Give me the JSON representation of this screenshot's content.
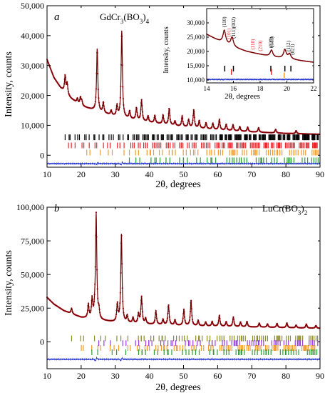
{
  "colors": {
    "observed": "#c0182a",
    "calculated": "#6e0000",
    "difference": "#1f2fd0",
    "axis": "#000000",
    "ticks_black": "#000000",
    "ticks_red": "#e8262b",
    "ticks_orange": "#f39a2b",
    "ticks_green": "#2e9a3a",
    "ticks_olive": "#8a8a2a",
    "ticks_purple": "#9a3ee0"
  },
  "chart_data": [
    {
      "type": "line",
      "panel_letter": "a",
      "compound": {
        "base": "GdCr",
        "s1": "3",
        "mid": "(BO",
        "s2": "3",
        "tail": ")",
        "s3": "4"
      },
      "xlabel": "2θ, degrees",
      "ylabel": "Intensity, counts",
      "xlim": [
        10,
        90
      ],
      "ylim": [
        -4000,
        50000
      ],
      "x_ticks": [
        "10",
        "20",
        "30",
        "40",
        "50",
        "60",
        "70",
        "80",
        "90"
      ],
      "x_tick_values": [
        10,
        20,
        30,
        40,
        50,
        60,
        70,
        80,
        90
      ],
      "y_ticks": [
        "0",
        "10,000",
        "20,000",
        "30,000",
        "40,000",
        "50,000"
      ],
      "y_tick_values": [
        0,
        10000,
        20000,
        30000,
        40000,
        50000
      ],
      "background": [
        [
          10,
          32000
        ],
        [
          12,
          26000
        ],
        [
          14,
          22500
        ],
        [
          17,
          19000
        ],
        [
          20,
          16500
        ],
        [
          25,
          14500
        ],
        [
          30,
          13000
        ],
        [
          35,
          12000
        ],
        [
          40,
          11000
        ],
        [
          50,
          9500
        ],
        [
          60,
          8500
        ],
        [
          70,
          7800
        ],
        [
          80,
          7300
        ],
        [
          90,
          7000
        ]
      ],
      "peaks": [
        {
          "x": 15.3,
          "h": 5500
        },
        {
          "x": 15.9,
          "h": 3500
        },
        {
          "x": 18.9,
          "h": 1500
        },
        {
          "x": 19.8,
          "h": 2500
        },
        {
          "x": 20.2,
          "h": 1500
        },
        {
          "x": 24.7,
          "h": 21000
        },
        {
          "x": 26.5,
          "h": 3500
        },
        {
          "x": 28.8,
          "h": 1500
        },
        {
          "x": 30.5,
          "h": 3500
        },
        {
          "x": 31.9,
          "h": 29000
        },
        {
          "x": 34.2,
          "h": 2500
        },
        {
          "x": 36.2,
          "h": 4000
        },
        {
          "x": 37.7,
          "h": 7000
        },
        {
          "x": 39.6,
          "h": 2000
        },
        {
          "x": 41.6,
          "h": 2500
        },
        {
          "x": 44.0,
          "h": 3000
        },
        {
          "x": 45.8,
          "h": 5500
        },
        {
          "x": 47.5,
          "h": 1500
        },
        {
          "x": 49.6,
          "h": 3500
        },
        {
          "x": 51.5,
          "h": 2500
        },
        {
          "x": 53.0,
          "h": 6000
        },
        {
          "x": 54.6,
          "h": 2500
        },
        {
          "x": 56.6,
          "h": 2000
        },
        {
          "x": 58.6,
          "h": 2000
        },
        {
          "x": 60.5,
          "h": 3500
        },
        {
          "x": 62.5,
          "h": 2000
        },
        {
          "x": 64.5,
          "h": 2000
        },
        {
          "x": 66.5,
          "h": 1500
        },
        {
          "x": 68.8,
          "h": 1500
        },
        {
          "x": 72.0,
          "h": 1500
        },
        {
          "x": 77.0,
          "h": 1200
        },
        {
          "x": 83.0,
          "h": 1000
        }
      ],
      "peak_width": 0.22,
      "difference_level": -2800,
      "reflection_rows": [
        {
          "color": "ticks_black",
          "level": 6000,
          "start": 15.3,
          "step": 0.9,
          "jitter": 0.35,
          "density_end": 90
        },
        {
          "color": "ticks_red",
          "level": 3300,
          "start": 15.9,
          "step": 1.3,
          "jitter": 0.45,
          "density_end": 90
        },
        {
          "color": "ticks_orange",
          "level": 900,
          "start": 21.0,
          "step": 2.2,
          "jitter": 0.7,
          "density_end": 90
        },
        {
          "color": "ticks_green",
          "level": -1700,
          "start": 34.0,
          "step": 2.8,
          "jitter": 0.9,
          "density_end": 90
        }
      ],
      "inset": {
        "xlabel": "2θ, degrees",
        "ylabel": "Intensity, counts",
        "xlim": [
          14,
          22
        ],
        "ylim": [
          9000,
          35000
        ],
        "x_ticks": [
          "14",
          "16",
          "18",
          "20",
          "22"
        ],
        "x_tick_values": [
          14,
          16,
          18,
          20,
          22
        ],
        "y_ticks": [
          "10,000",
          "15,000",
          "20,000",
          "25,000",
          "30,000"
        ],
        "y_tick_values": [
          10000,
          15000,
          20000,
          25000,
          30000
        ],
        "background": [
          [
            14,
            26000
          ],
          [
            15,
            23500
          ],
          [
            16,
            21500
          ],
          [
            17,
            20000
          ],
          [
            18,
            19000
          ],
          [
            19,
            18000
          ],
          [
            20,
            17500
          ],
          [
            21,
            16800
          ],
          [
            22,
            16200
          ]
        ],
        "peaks": [
          {
            "x": 15.32,
            "h": 4500
          },
          {
            "x": 15.9,
            "h": 3200
          },
          {
            "x": 18.85,
            "h": 2300
          },
          {
            "x": 19.85,
            "h": 3000
          },
          {
            "x": 20.2,
            "h": 1700
          }
        ],
        "peak_width": 0.12,
        "difference_level": 10200,
        "ticks_black": [
          15.35,
          16.0,
          18.8,
          19.85,
          20.3
        ],
        "ticks_red": [
          15.85,
          18.85
        ],
        "ticks_orange": [
          19.8
        ],
        "ticks_level_black": 14000,
        "ticks_level_red": 12800,
        "ticks_level_orange": 11600,
        "hkl_labels": [
          {
            "text": "(110)",
            "x": 15.3,
            "color": "ticks_black",
            "row": 0
          },
          {
            "text": "(101)",
            "x": 15.65,
            "color": "ticks_red",
            "row": 1
          },
          {
            "text": "(111)(002)",
            "x": 16.0,
            "color": "ticks_black",
            "row": 2
          },
          {
            "text": "(110)",
            "x": 17.45,
            "color": "ticks_red",
            "row": 0
          },
          {
            "text": "(210)",
            "x": 18.0,
            "color": "ticks_red",
            "row": 0
          },
          {
            "text": "(020)",
            "x": 18.8,
            "color": "ticks_black",
            "row": 1
          },
          {
            "text": "(113)",
            "x": 18.85,
            "color": "ticks_black",
            "row": 2
          },
          {
            "text": "(112)",
            "x": 20.1,
            "color": "ticks_black",
            "row": 1
          },
          {
            "text": "(021)",
            "x": 20.4,
            "color": "ticks_black",
            "row": 2
          }
        ]
      }
    },
    {
      "type": "line",
      "panel_letter": "b",
      "compound": {
        "base": "LuCr(BO",
        "s1": "3",
        "mid": ")",
        "s2": "2",
        "tail": "",
        "s3": ""
      },
      "xlabel": "2θ, degrees",
      "ylabel": "Intensity, counts",
      "xlim": [
        10,
        90
      ],
      "ylim": [
        -20000,
        100000
      ],
      "x_ticks": [
        "10",
        "20",
        "30",
        "40",
        "50",
        "60",
        "70",
        "80",
        "90"
      ],
      "x_tick_values": [
        10,
        20,
        30,
        40,
        50,
        60,
        70,
        80,
        90
      ],
      "y_ticks": [
        "0",
        "25,000",
        "50,000",
        "75,000",
        "100,000"
      ],
      "y_tick_values": [
        0,
        25000,
        50000,
        75000,
        100000
      ],
      "background": [
        [
          10,
          33000
        ],
        [
          12,
          28000
        ],
        [
          15,
          23000
        ],
        [
          20,
          18000
        ],
        [
          25,
          16000
        ],
        [
          30,
          14500
        ],
        [
          40,
          13000
        ],
        [
          50,
          12000
        ],
        [
          60,
          11500
        ],
        [
          70,
          11000
        ],
        [
          80,
          10500
        ],
        [
          90,
          10000
        ]
      ],
      "peaks": [
        {
          "x": 17.2,
          "h": 4000
        },
        {
          "x": 22.1,
          "h": 10000
        },
        {
          "x": 23.2,
          "h": 14000
        },
        {
          "x": 24.0,
          "h": 4000
        },
        {
          "x": 24.4,
          "h": 78000
        },
        {
          "x": 25.2,
          "h": 6000
        },
        {
          "x": 30.6,
          "h": 13000
        },
        {
          "x": 31.8,
          "h": 66000
        },
        {
          "x": 33.5,
          "h": 5000
        },
        {
          "x": 35.2,
          "h": 4000
        },
        {
          "x": 36.8,
          "h": 7000
        },
        {
          "x": 37.7,
          "h": 20000
        },
        {
          "x": 38.9,
          "h": 4000
        },
        {
          "x": 41.9,
          "h": 10000
        },
        {
          "x": 44.0,
          "h": 4000
        },
        {
          "x": 45.6,
          "h": 15000
        },
        {
          "x": 47.5,
          "h": 4000
        },
        {
          "x": 50.1,
          "h": 12000
        },
        {
          "x": 52.2,
          "h": 19000
        },
        {
          "x": 54.3,
          "h": 4000
        },
        {
          "x": 56.5,
          "h": 3000
        },
        {
          "x": 58.4,
          "h": 3500
        },
        {
          "x": 60.5,
          "h": 8000
        },
        {
          "x": 62.5,
          "h": 3500
        },
        {
          "x": 64.6,
          "h": 7000
        },
        {
          "x": 66.7,
          "h": 3500
        },
        {
          "x": 68.6,
          "h": 4000
        },
        {
          "x": 72.2,
          "h": 3000
        },
        {
          "x": 74.6,
          "h": 2500
        },
        {
          "x": 77.4,
          "h": 3000
        },
        {
          "x": 80.3,
          "h": 3500
        },
        {
          "x": 83.0,
          "h": 2000
        },
        {
          "x": 86.0,
          "h": 3000
        },
        {
          "x": 88.8,
          "h": 2000
        }
      ],
      "peak_width": 0.22,
      "difference_level": -13000,
      "reflection_rows": [
        {
          "color": "ticks_olive",
          "level": 2500,
          "start": 17.2,
          "step": 2.1,
          "jitter": 0.7,
          "density_end": 90
        },
        {
          "color": "ticks_purple",
          "level": -1000,
          "start": 24.5,
          "step": 2.3,
          "jitter": 0.8,
          "density_end": 90
        },
        {
          "color": "ticks_orange",
          "level": -4600,
          "start": 19.5,
          "step": 1.7,
          "jitter": 0.6,
          "density_end": 90
        },
        {
          "color": "ticks_green",
          "level": -7800,
          "start": 23.0,
          "step": 2.6,
          "jitter": 0.9,
          "density_end": 90
        }
      ]
    }
  ]
}
